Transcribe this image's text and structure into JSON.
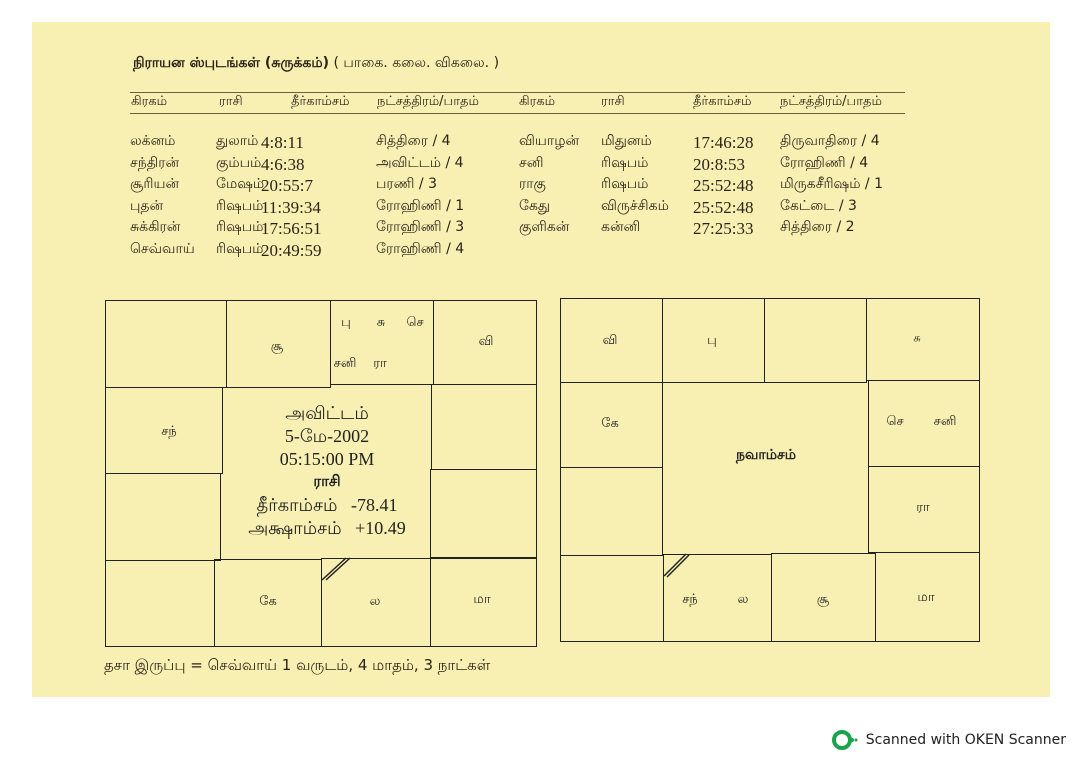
{
  "title": {
    "bold": "நிராயன ஸ்புடங்கள் (சுருக்கம்)",
    "rest": "( பாகை. கலை. விகலை. )"
  },
  "headers": [
    "கிரகம்",
    "ராசி",
    "தீர்காம்சம்",
    "நட்சத்திரம்/பாதம்",
    "கிரகம்",
    "ராசி",
    "தீர்காம்சம்",
    "நட்சத்திரம்/பாதம்"
  ],
  "left_rows": [
    [
      "லக்னம்",
      "துலாம்",
      "4:8:11",
      "சித்திரை / 4"
    ],
    [
      "சந்திரன்",
      "கும்பம்",
      "4:6:38",
      "அவிட்டம் / 4"
    ],
    [
      "சூரியன்",
      "மேஷம்",
      "20:55:7",
      "பரணி / 3"
    ],
    [
      "புதன்",
      "ரிஷபம்",
      "11:39:34",
      "ரோஹிணி / 1"
    ],
    [
      "சுக்கிரன்",
      "ரிஷபம்",
      "17:56:51",
      "ரோஹிணி / 3"
    ],
    [
      "செவ்வாய்",
      "ரிஷபம்",
      "20:49:59",
      "ரோஹிணி / 4"
    ]
  ],
  "right_rows": [
    [
      "வியாழன்",
      "மிதுனம்",
      "17:46:28",
      "திருவாதிரை / 4"
    ],
    [
      "சனி",
      "ரிஷபம்",
      "20:8:53",
      "ரோஹிணி / 4"
    ],
    [
      "ராகு",
      "ரிஷபம்",
      "25:52:48",
      "மிருகசீரிஷம் / 1"
    ],
    [
      "கேது",
      "விருச்சிகம்",
      "25:52:48",
      "கேட்டை / 3"
    ],
    [
      "குளிகன்",
      "கன்னி",
      "27:25:33",
      "சித்திரை / 2"
    ]
  ],
  "rasi_chart": {
    "cells": {
      "top2": "சூ",
      "top3a": "பு",
      "top3b": "சு",
      "top3c": "செ",
      "top3d": "சனி",
      "top3e": "ரா",
      "top4": "வி",
      "left2": "சந்",
      "bot2": "கே",
      "bot3": "ல",
      "bot4": "மா"
    },
    "center": [
      "அவிட்டம்",
      "5-மே-2002",
      "05:15:00 PM",
      "ராசி",
      "தீர்காம்சம்   -78.41",
      "அக்ஷாம்சம்   +10.49"
    ]
  },
  "navamsa_chart": {
    "cells": {
      "top1": "வி",
      "top2": "பு",
      "top4": "சு",
      "left2": "கே",
      "right2a": "செ",
      "right2b": "சனி",
      "right3": "ரா",
      "bot2a": "சந்",
      "bot2b": "ல",
      "bot3": "சூ",
      "bot4": "மா"
    },
    "center": "நவாம்சம்"
  },
  "dasa": "தசா இருப்பு = செவ்வாய் 1 வருடம், 4 மாதம், 3 நாட்கள்",
  "footer": {
    "text": "Scanned with OKEN Scanner",
    "accent": "#1aa34a"
  }
}
